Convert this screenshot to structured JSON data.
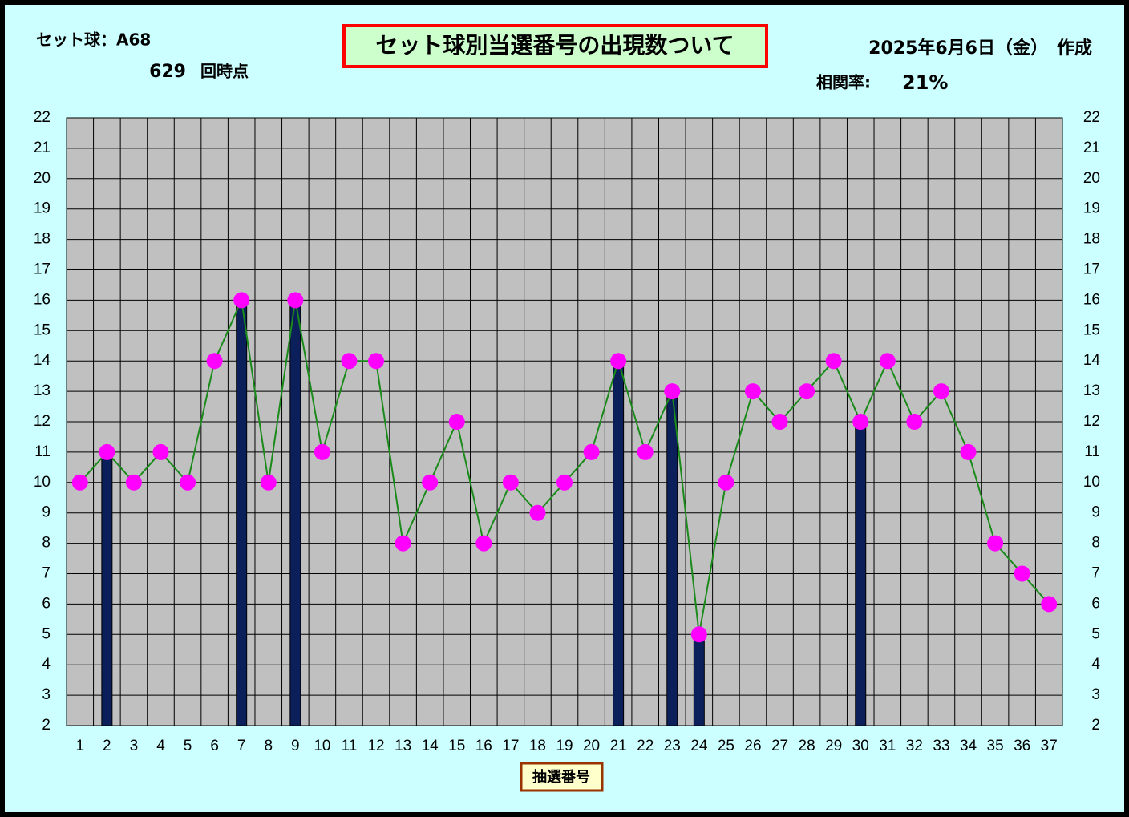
{
  "chart_data": {
    "type": "combo",
    "title": "セット球別当選番号の出現数ついて",
    "set_ball": "セット球：A68",
    "draw_count": "629",
    "draw_suffix": "回時点",
    "date": "2025年6月6日（金）　作成",
    "correlation_label": "相関率:",
    "correlation": "21%",
    "xlabel": "抽選番号",
    "categories": [
      "1",
      "2",
      "3",
      "4",
      "5",
      "6",
      "7",
      "8",
      "9",
      "10",
      "11",
      "12",
      "13",
      "14",
      "15",
      "16",
      "17",
      "18",
      "19",
      "20",
      "21",
      "22",
      "23",
      "24",
      "25",
      "26",
      "27",
      "28",
      "29",
      "30",
      "31",
      "32",
      "33",
      "34",
      "35",
      "36",
      "37"
    ],
    "series": [
      {
        "type": "bar",
        "color": "#0b1f5a",
        "values": [
          null,
          11,
          null,
          null,
          null,
          null,
          16,
          null,
          16,
          null,
          null,
          null,
          null,
          null,
          null,
          null,
          null,
          null,
          null,
          null,
          14,
          null,
          13,
          5,
          null,
          null,
          null,
          null,
          null,
          12,
          null,
          null,
          null,
          null,
          null,
          null,
          null
        ]
      },
      {
        "type": "line",
        "color": "#1a8a1a",
        "marker_color": "#ff00ff",
        "values": [
          10,
          11,
          10,
          11,
          10,
          14,
          16,
          10,
          16,
          11,
          14,
          14,
          8,
          10,
          12,
          8,
          10,
          9,
          10,
          11,
          14,
          11,
          13,
          5,
          10,
          13,
          12,
          13,
          14,
          12,
          14,
          12,
          13,
          11,
          8,
          7,
          6
        ]
      }
    ],
    "ylim": [
      2,
      22
    ],
    "yticks": [
      2,
      3,
      4,
      5,
      6,
      7,
      8,
      9,
      10,
      11,
      12,
      13,
      14,
      15,
      16,
      17,
      18,
      19,
      20,
      21,
      22
    ],
    "grid": true
  }
}
